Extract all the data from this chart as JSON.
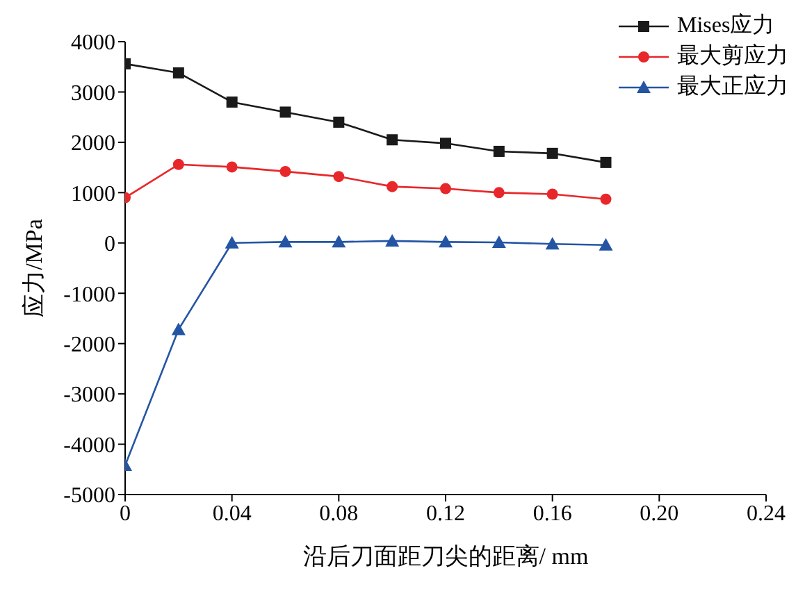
{
  "chart_data": {
    "type": "line",
    "xlabel": "沿后刀面距刀尖的距离/ mm",
    "ylabel": "应力/MPa",
    "x": [
      0,
      0.02,
      0.04,
      0.06,
      0.08,
      0.1,
      0.12,
      0.14,
      0.16,
      0.18
    ],
    "series": [
      {
        "name": "Mises应力",
        "color": "#1a1a1a",
        "marker": "square",
        "values": [
          3560,
          3380,
          2800,
          2600,
          2400,
          2050,
          1980,
          1820,
          1780,
          1600
        ]
      },
      {
        "name": "最大剪应力",
        "color": "#e8272a",
        "marker": "circle",
        "values": [
          900,
          1560,
          1510,
          1420,
          1320,
          1120,
          1080,
          1000,
          970,
          870
        ]
      },
      {
        "name": "最大正应力",
        "color": "#2455a4",
        "marker": "triangle",
        "values": [
          -4420,
          -1720,
          0,
          20,
          20,
          40,
          20,
          10,
          -20,
          -40
        ]
      }
    ],
    "xlim": [
      0,
      0.24
    ],
    "xticks": [
      0,
      0.04,
      0.08,
      0.12,
      0.16,
      {
        "value": 0.2,
        "label": "0.20"
      },
      0.24
    ],
    "ylim": [
      -5000,
      4000
    ],
    "yticks": [
      -5000,
      -4000,
      -3000,
      -2000,
      -1000,
      0,
      1000,
      2000,
      3000,
      4000
    ],
    "grid": false,
    "legend": "top right",
    "line_style": "solid"
  }
}
